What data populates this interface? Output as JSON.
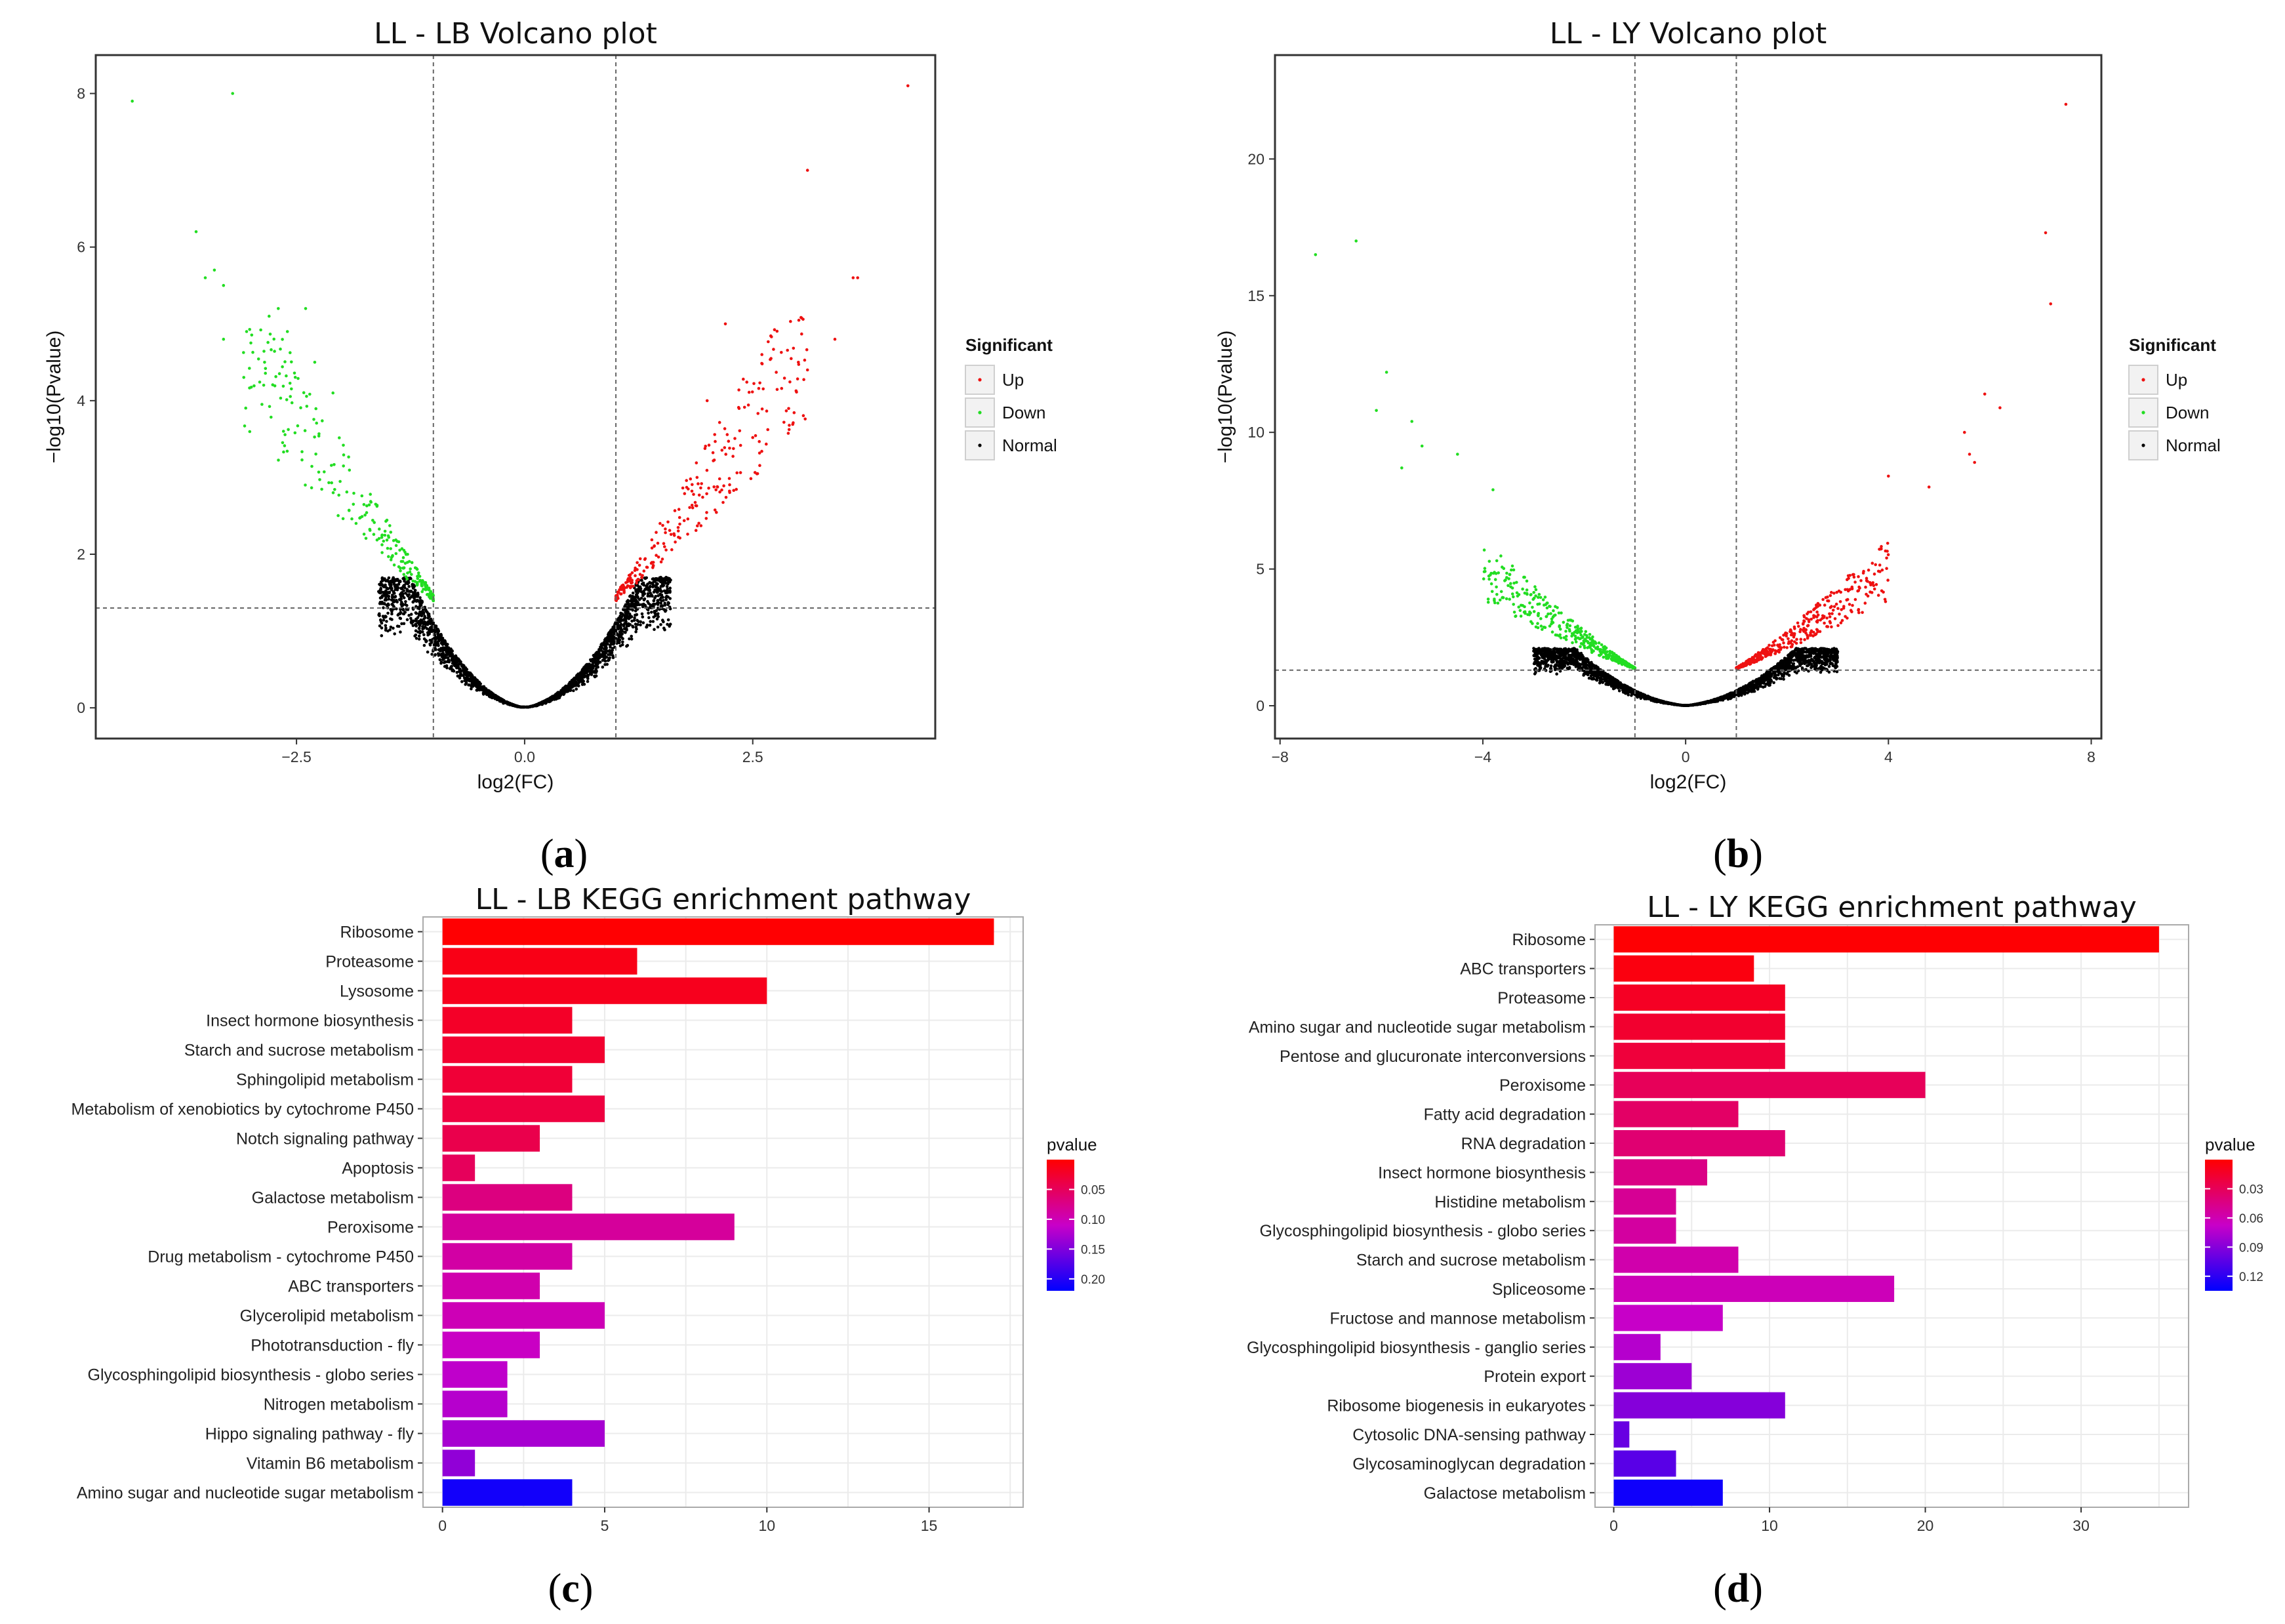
{
  "figure": {
    "panel_labels": [
      {
        "open": "(",
        "letter": "a",
        "close": ")"
      },
      {
        "open": "(",
        "letter": "b",
        "close": ")"
      },
      {
        "open": "(",
        "letter": "c",
        "close": ")"
      },
      {
        "open": "(",
        "letter": "d",
        "close": ")"
      }
    ]
  },
  "colors": {
    "up": "#ee1111",
    "down": "#22dd22",
    "normal": "#000000",
    "gradient_high": "#ff0000",
    "gradient_mid": "#c800c8",
    "gradient_low": "#0000ff",
    "grid": "#ebebeb"
  },
  "chart_data": [
    {
      "type": "scatter",
      "subtype": "volcano",
      "title": "LL - LB  Volcano plot",
      "xlabel": "log2(FC)",
      "ylabel": "−log10(Pvalue)",
      "xlim": [
        -4.7,
        4.5
      ],
      "ylim": [
        -0.4,
        8.5
      ],
      "xticks": [
        -2.5,
        0.0,
        2.5
      ],
      "xtick_labels": [
        "−2.5",
        "0.0",
        "2.5"
      ],
      "yticks": [
        0,
        2,
        4,
        6,
        8
      ],
      "ytick_labels": [
        "0",
        "2",
        "4",
        "6",
        "8"
      ],
      "fc_threshold": 1,
      "p_threshold": 1.3,
      "legend": {
        "title": "Significant",
        "entries": [
          "Up",
          "Down",
          "Normal"
        ],
        "position": "right"
      },
      "highlight_points": {
        "up": [
          [
            4.2,
            8.1
          ],
          [
            3.1,
            7.0
          ],
          [
            3.6,
            5.6
          ],
          [
            3.65,
            5.6
          ],
          [
            2.2,
            5.0
          ],
          [
            3.4,
            4.8
          ],
          [
            2.6,
            4.6
          ],
          [
            2.7,
            4.55
          ],
          [
            3.0,
            4.5
          ],
          [
            3.1,
            4.4
          ],
          [
            2.0,
            4.0
          ]
        ],
        "down": [
          [
            -4.3,
            7.9
          ],
          [
            -3.2,
            8.0
          ],
          [
            -3.6,
            6.2
          ],
          [
            -3.4,
            5.7
          ],
          [
            -3.5,
            5.6
          ],
          [
            -3.3,
            5.5
          ],
          [
            -2.7,
            5.2
          ],
          [
            -2.4,
            5.2
          ],
          [
            -2.8,
            5.1
          ],
          [
            -3.3,
            4.8
          ],
          [
            -2.6,
            4.9
          ],
          [
            -2.3,
            4.5
          ],
          [
            -2.85,
            4.5
          ],
          [
            -2.1,
            4.1
          ]
        ]
      },
      "background_count": {
        "normal": 2200,
        "up": 260,
        "down": 260
      }
    },
    {
      "type": "scatter",
      "subtype": "volcano",
      "title": "LL - LY  Volcano plot",
      "xlabel": "log2(FC)",
      "ylabel": "−log10(Pvalue)",
      "xlim": [
        -8.1,
        8.2
      ],
      "ylim": [
        -1.2,
        23.8
      ],
      "xticks": [
        -8,
        -4,
        0,
        4,
        8
      ],
      "xtick_labels": [
        "−8",
        "−4",
        "0",
        "4",
        "8"
      ],
      "yticks": [
        0,
        5,
        10,
        15,
        20
      ],
      "ytick_labels": [
        "0",
        "5",
        "10",
        "15",
        "20"
      ],
      "fc_threshold": 1,
      "p_threshold": 1.3,
      "legend": {
        "title": "Significant",
        "entries": [
          "Up",
          "Down",
          "Normal"
        ],
        "position": "right"
      },
      "highlight_points": {
        "up": [
          [
            7.5,
            22.0
          ],
          [
            7.1,
            17.3
          ],
          [
            7.2,
            14.7
          ],
          [
            6.2,
            10.9
          ],
          [
            5.9,
            11.4
          ],
          [
            5.5,
            10.0
          ],
          [
            5.6,
            9.2
          ],
          [
            5.7,
            8.9
          ],
          [
            4.0,
            8.4
          ],
          [
            4.8,
            8.0
          ]
        ],
        "down": [
          [
            -7.3,
            16.5
          ],
          [
            -6.5,
            17.0
          ],
          [
            -5.9,
            12.2
          ],
          [
            -6.1,
            10.8
          ],
          [
            -5.4,
            10.4
          ],
          [
            -5.2,
            9.5
          ],
          [
            -5.6,
            8.7
          ],
          [
            -4.5,
            9.2
          ],
          [
            -3.8,
            7.9
          ]
        ]
      },
      "background_count": {
        "normal": 2400,
        "up": 420,
        "down": 420
      }
    },
    {
      "type": "bar",
      "orientation": "horizontal",
      "title": "LL - LB  KEGG enrichment pathway",
      "categories": [
        "Ribosome",
        "Proteasome",
        "Lysosome",
        "Insect hormone biosynthesis",
        "Starch and sucrose metabolism",
        "Sphingolipid metabolism",
        "Metabolism of xenobiotics by cytochrome P450",
        "Notch signaling pathway",
        "Apoptosis",
        "Galactose metabolism",
        "Peroxisome",
        "Drug metabolism - cytochrome P450",
        "ABC transporters",
        "Glycerolipid metabolism",
        "Phototransduction - fly",
        "Glycosphingolipid biosynthesis - globo series",
        "Nitrogen metabolism",
        "Hippo signaling pathway - fly",
        "Vitamin B6 metabolism",
        "Amino sugar and nucleotide sugar metabolism"
      ],
      "values": [
        17,
        6,
        10,
        4,
        5,
        4,
        5,
        3,
        1,
        4,
        9,
        4,
        3,
        5,
        3,
        2,
        2,
        5,
        1,
        4
      ],
      "pvalues": [
        0.001,
        0.012,
        0.016,
        0.022,
        0.026,
        0.03,
        0.035,
        0.042,
        0.05,
        0.07,
        0.085,
        0.09,
        0.095,
        0.1,
        0.108,
        0.115,
        0.12,
        0.128,
        0.14,
        0.21
      ],
      "xlim": [
        -0.6,
        17.9
      ],
      "xticks": [
        0,
        5,
        10,
        15
      ],
      "xtick_labels": [
        "0",
        "5",
        "10",
        "15"
      ],
      "colorbar": {
        "title": "pvalue",
        "range": [
          0.0,
          0.22
        ],
        "ticks": [
          0.05,
          0.1,
          0.15,
          0.2
        ],
        "tick_labels": [
          "0.05",
          "0.10",
          "0.15",
          "0.20"
        ]
      }
    },
    {
      "type": "bar",
      "orientation": "horizontal",
      "title": "LL - LY  KEGG enrichment pathway",
      "categories": [
        "Ribosome",
        "ABC transporters",
        "Proteasome",
        "Amino sugar and nucleotide sugar metabolism",
        "Pentose and glucuronate interconversions",
        "Peroxisome",
        "Fatty acid degradation",
        "RNA degradation",
        "Insect hormone biosynthesis",
        "Histidine metabolism",
        "Glycosphingolipid biosynthesis - globo series",
        "Starch and sucrose metabolism",
        "Spliceosome",
        "Fructose and mannose metabolism",
        "Glycosphingolipid biosynthesis - ganglio series",
        "Protein export",
        "Ribosome biogenesis in eukaryotes",
        "Cytosolic DNA-sensing pathway",
        "Glycosaminoglycan degradation",
        "Galactose metabolism"
      ],
      "values": [
        35,
        9,
        11,
        11,
        11,
        20,
        8,
        11,
        6,
        4,
        4,
        8,
        18,
        7,
        3,
        5,
        11,
        1,
        4,
        7
      ],
      "pvalues": [
        0.001,
        0.005,
        0.012,
        0.016,
        0.02,
        0.03,
        0.034,
        0.038,
        0.045,
        0.05,
        0.054,
        0.058,
        0.062,
        0.068,
        0.074,
        0.082,
        0.09,
        0.1,
        0.105,
        0.13
      ],
      "xlim": [
        -1.2,
        36.9
      ],
      "xticks": [
        0,
        10,
        20,
        30
      ],
      "xtick_labels": [
        "0",
        "10",
        "20",
        "30"
      ],
      "colorbar": {
        "title": "pvalue",
        "range": [
          0.0,
          0.135
        ],
        "ticks": [
          0.03,
          0.06,
          0.09,
          0.12
        ],
        "tick_labels": [
          "0.03",
          "0.06",
          "0.09",
          "0.12"
        ]
      }
    }
  ]
}
